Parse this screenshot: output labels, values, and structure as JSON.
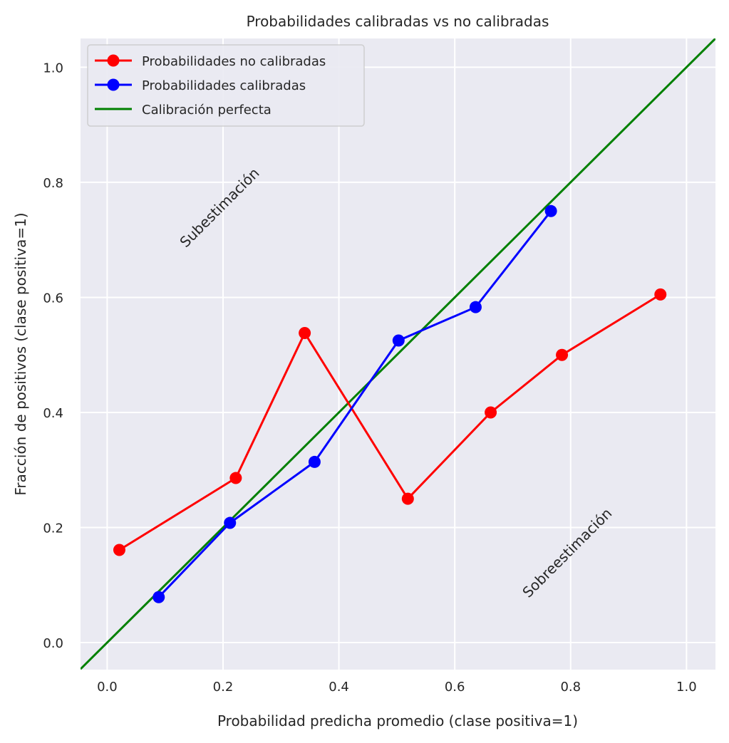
{
  "chart_data": {
    "type": "line",
    "title": "Probabilidades calibradas vs no calibradas",
    "xlabel": "Probabilidad predicha promedio (clase positiva=1)",
    "ylabel": "Fracción de positivos (clase positiva=1)",
    "xlim": [
      -0.046,
      1.05
    ],
    "ylim": [
      -0.047,
      1.05
    ],
    "xticks": [
      "0.0",
      "0.2",
      "0.4",
      "0.6",
      "0.8",
      "1.0"
    ],
    "yticks": [
      "0.0",
      "0.2",
      "0.4",
      "0.6",
      "0.8",
      "1.0"
    ],
    "grid": true,
    "background": "#eaeaf2",
    "legend_position": "top-left",
    "series": [
      {
        "name": "Probabilidades no calibradas",
        "color": "#ff0000",
        "marker": "circle",
        "x": [
          0.021,
          0.222,
          0.341,
          0.519,
          0.662,
          0.785,
          0.955
        ],
        "y": [
          0.161,
          0.286,
          0.538,
          0.25,
          0.4,
          0.5,
          0.605
        ]
      },
      {
        "name": "Probabilidades calibradas",
        "color": "#0000ff",
        "marker": "circle",
        "x": [
          0.089,
          0.212,
          0.358,
          0.503,
          0.636,
          0.766
        ],
        "y": [
          0.079,
          0.208,
          0.314,
          0.525,
          0.583,
          0.75
        ]
      },
      {
        "name": "Calibración perfecta",
        "color": "#008000",
        "marker": "none",
        "x": [
          -0.046,
          1.05
        ],
        "y": [
          -0.046,
          1.05
        ]
      }
    ],
    "annotations": [
      {
        "text": "Subestimación",
        "x": 0.2,
        "y": 0.75,
        "rotation": 45
      },
      {
        "text": "Sobreestimación",
        "x": 0.8,
        "y": 0.15,
        "rotation": 45
      }
    ]
  }
}
